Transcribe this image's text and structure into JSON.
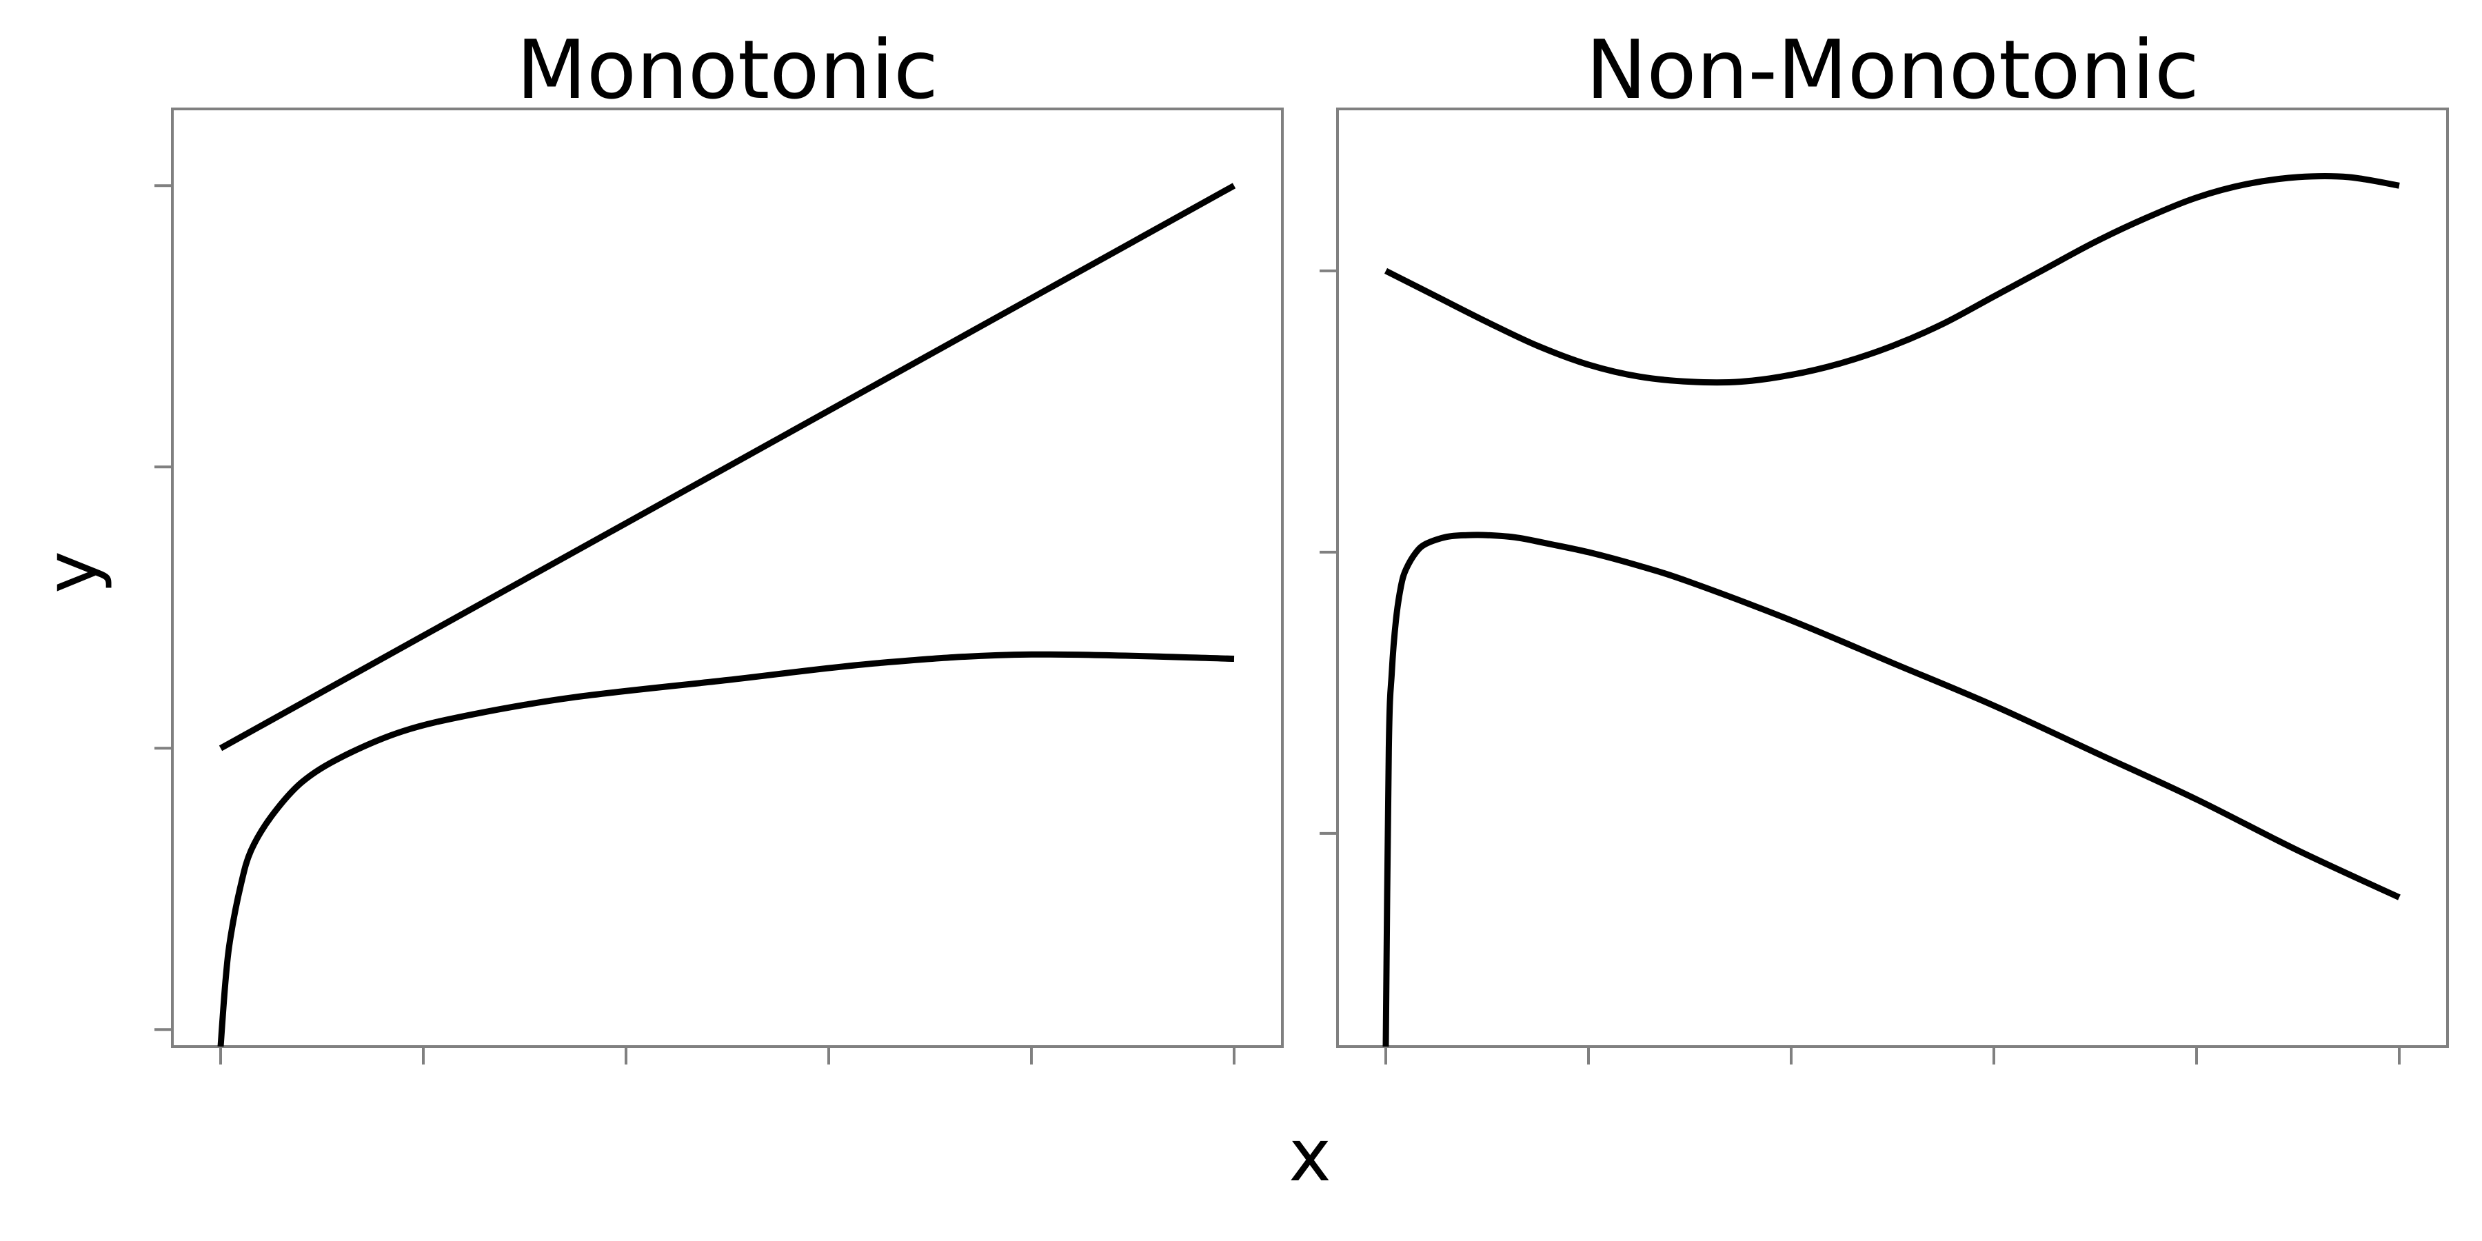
{
  "chart_data": [
    {
      "type": "line",
      "title": "Monotonic",
      "xlim": [
        0,
        1.1
      ],
      "ylim": [
        0,
        1.1
      ],
      "x_ticks": [
        0,
        0.2,
        0.4,
        0.6,
        0.8,
        1.0
      ],
      "y_ticks": [
        0.02,
        0.35,
        0.68,
        1.01
      ],
      "series": [
        {
          "x": [
            0,
            0.1,
            0.2,
            0.3,
            0.4,
            0.5,
            0.6,
            0.7,
            0.8,
            0.9,
            1.0
          ],
          "y": [
            0.35,
            0.416,
            0.482,
            0.548,
            0.614,
            0.68,
            0.746,
            0.812,
            0.878,
            0.944,
            1.01
          ]
        },
        {
          "x": [
            0,
            0.005,
            0.01,
            0.02,
            0.03,
            0.05,
            0.08,
            0.12,
            0.18,
            0.25,
            0.35,
            0.5,
            0.65,
            0.8,
            1.0
          ],
          "y": [
            0.0,
            0.08,
            0.13,
            0.19,
            0.23,
            0.27,
            0.31,
            0.34,
            0.37,
            0.39,
            0.41,
            0.43,
            0.45,
            0.46,
            0.455
          ]
        }
      ]
    },
    {
      "type": "line",
      "title": "Non-Monotonic",
      "xlim": [
        0,
        1.1
      ],
      "ylim": [
        0,
        1.1
      ],
      "x_ticks": [
        0,
        0.2,
        0.4,
        0.6,
        0.8,
        1.0
      ],
      "y_ticks": [
        0.25,
        0.58,
        0.91
      ],
      "series": [
        {
          "x": [
            0,
            0.05,
            0.1,
            0.15,
            0.2,
            0.25,
            0.3,
            0.35,
            0.4,
            0.45,
            0.5,
            0.55,
            0.6,
            0.65,
            0.7,
            0.75,
            0.8,
            0.85,
            0.9,
            0.95,
            1.0
          ],
          "y": [
            0.91,
            0.88,
            0.85,
            0.822,
            0.8,
            0.786,
            0.78,
            0.78,
            0.788,
            0.802,
            0.822,
            0.848,
            0.88,
            0.912,
            0.944,
            0.972,
            0.996,
            1.012,
            1.02,
            1.02,
            1.01
          ]
        },
        {
          "x": [
            0,
            0.003,
            0.006,
            0.01,
            0.015,
            0.02,
            0.03,
            0.04,
            0.06,
            0.08,
            0.1,
            0.13,
            0.16,
            0.2,
            0.25,
            0.3,
            0.4,
            0.5,
            0.6,
            0.7,
            0.8,
            0.9,
            1.0
          ],
          "y": [
            0.0,
            0.35,
            0.44,
            0.5,
            0.54,
            0.56,
            0.58,
            0.59,
            0.598,
            0.6,
            0.6,
            0.597,
            0.59,
            0.58,
            0.564,
            0.545,
            0.5,
            0.45,
            0.4,
            0.345,
            0.29,
            0.23,
            0.175
          ]
        }
      ]
    }
  ],
  "xlabel": "x",
  "ylabel": "y"
}
